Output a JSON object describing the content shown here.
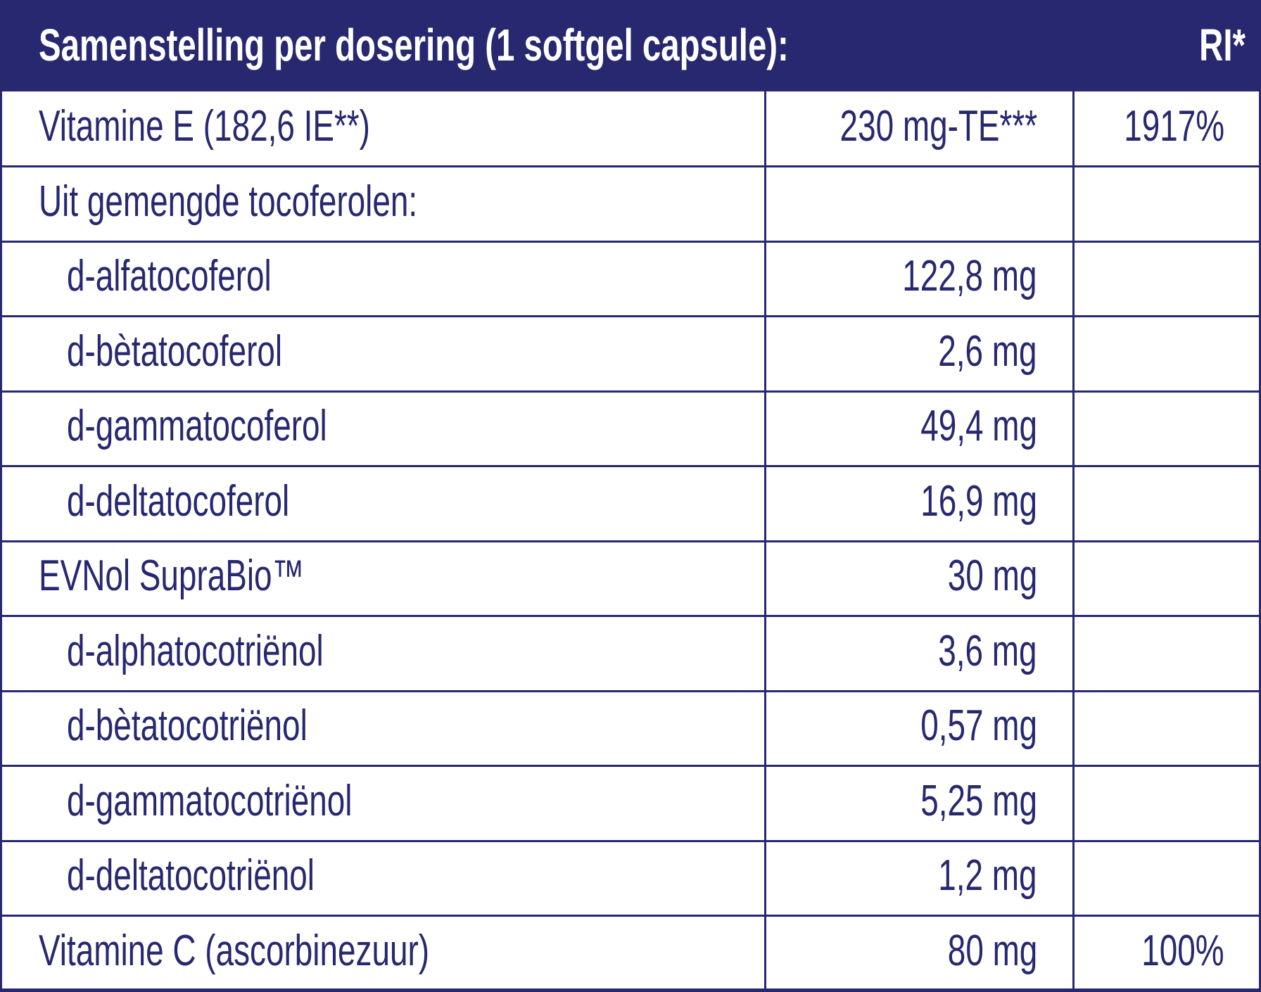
{
  "header": {
    "title": "Samenstelling per dosering (1 softgel capsule):",
    "ri": "RI*"
  },
  "groups": [
    {
      "name": "Vitamine E (182,6 IE**)",
      "amount": "230 mg-TE***",
      "ri": "1917%"
    },
    {
      "name": "Uit gemengde tocoferolen:",
      "items": [
        {
          "name": "d-alfatocoferol",
          "amount": "122,8 mg"
        },
        {
          "name": "d-bètatocoferol",
          "amount": "2,6 mg"
        },
        {
          "name": "d-gammatocoferol",
          "amount": "49,4 mg"
        },
        {
          "name": "d-deltatocoferol",
          "amount": "16,9 mg"
        }
      ]
    },
    {
      "name": "EVNol SupraBio™",
      "amount": "30 mg",
      "items": [
        {
          "name": "d-alphatocotriënol",
          "amount": "3,6 mg"
        },
        {
          "name": "d-bètatocotriënol",
          "amount": "0,57 mg"
        },
        {
          "name": "d-gammatocotriënol",
          "amount": "5,25 mg"
        },
        {
          "name": "d-deltatocotriënol",
          "amount": "1,2 mg"
        }
      ]
    },
    {
      "name": "Vitamine C (ascorbinezuur)",
      "amount": "80 mg",
      "ri": "100%"
    }
  ]
}
